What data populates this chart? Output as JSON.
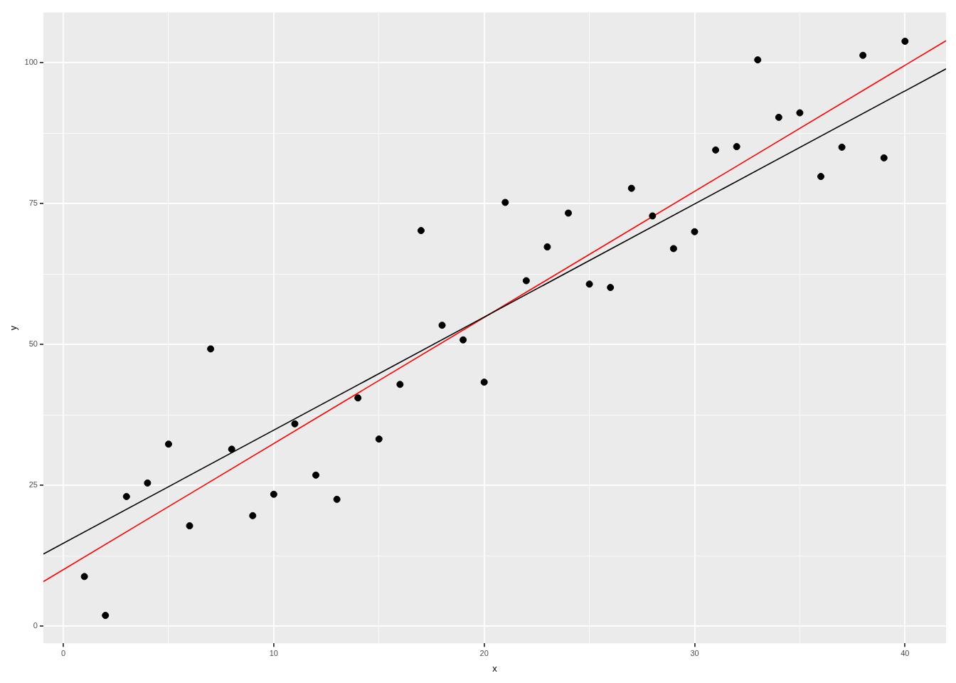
{
  "chart_data": {
    "type": "scatter",
    "xlabel": "x",
    "ylabel": "y",
    "xlim": [
      -0.95,
      41.95
    ],
    "ylim": [
      -3.05,
      108.9
    ],
    "xticks": [
      0,
      {
        "value": 5,
        "label": null
      },
      10,
      {
        "value": 15,
        "label": null
      },
      20,
      {
        "value": 25,
        "label": null
      },
      30,
      {
        "value": 35,
        "label": null
      },
      40
    ],
    "yticks": [
      0,
      {
        "value": 12.5,
        "label": null
      },
      25,
      {
        "value": 37.5,
        "label": null
      },
      50,
      {
        "value": 62.5,
        "label": null
      },
      75,
      {
        "value": 87.5,
        "label": null
      },
      100
    ],
    "grid": true,
    "series": [
      {
        "type": "scatter",
        "marker": "circle",
        "color": "#000000",
        "x": [
          1,
          2,
          3,
          4,
          5,
          6,
          7,
          8,
          9,
          10,
          11,
          12,
          13,
          14,
          15,
          16,
          17,
          18,
          19,
          20,
          21,
          22,
          23,
          24,
          25,
          26,
          27,
          28,
          29,
          30,
          31,
          32,
          33,
          34,
          35,
          36,
          37,
          38,
          39,
          40
        ],
        "values": [
          8.8,
          1.9,
          23.0,
          25.4,
          32.3,
          17.8,
          49.2,
          31.4,
          19.6,
          23.4,
          35.9,
          26.8,
          22.5,
          40.5,
          33.2,
          42.9,
          70.2,
          53.4,
          50.8,
          43.3,
          75.2,
          61.3,
          67.3,
          73.3,
          60.7,
          60.1,
          77.7,
          72.8,
          67.0,
          70.0,
          84.5,
          85.1,
          100.5,
          90.3,
          91.1,
          79.8,
          85.0,
          101.3,
          83.1,
          103.8
        ]
      },
      {
        "type": "line",
        "marker": "none",
        "color": "#000000",
        "x": [
          -0.95,
          41.95
        ],
        "values": [
          12.8,
          98.9
        ]
      },
      {
        "type": "line",
        "marker": "none",
        "color": "#ff0000",
        "x": [
          -0.95,
          41.95
        ],
        "values": [
          7.9,
          103.9
        ]
      }
    ]
  }
}
